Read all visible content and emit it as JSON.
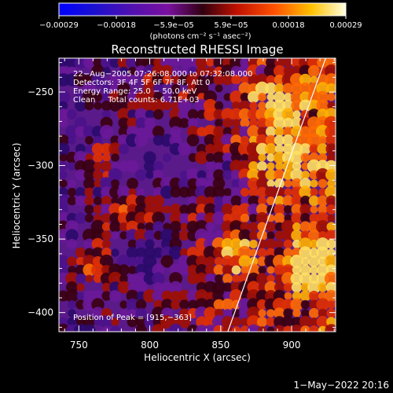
{
  "chart_data": {
    "type": "heatmap",
    "title": "Reconstructed RHESSI Image",
    "xlabel": "Heliocentric X (arcsec)",
    "ylabel": "Heliocentric Y (arcsec)",
    "xlim": [
      736,
      931
    ],
    "ylim": [
      -413,
      -227
    ],
    "x_ticks": [
      750,
      800,
      850,
      900
    ],
    "x_tick_labels": [
      "750",
      "800",
      "850",
      "900"
    ],
    "y_ticks": [
      -250,
      -300,
      -350,
      -400
    ],
    "y_tick_labels": [
      "−250",
      "−300",
      "−350",
      "−400"
    ],
    "colorbar": {
      "range": [
        -0.00029,
        0.00029
      ],
      "tick_labels": [
        "−0.00029",
        "−0.00018",
        "−5.9e−05",
        "5.9e−05",
        "0.00018",
        "0.00029"
      ],
      "unit": "(photons cm⁻² s⁻¹ asec⁻²)"
    },
    "annotations": [
      "22−Aug−2005 07:26:08.000 to 07:32:08.000",
      "Detectors: 3F 4F 5F 6F 7F 8F, Att 0",
      "Energy Range: 25.0 − 50.0 keV",
      "Clean     Total counts: 6.71E+03"
    ],
    "peak_label": "Position of Peak = [915,−363]",
    "peak": [
      915,
      -363
    ],
    "limb_line": [
      [
        855,
        -413
      ],
      [
        924,
        -227
      ]
    ],
    "timestamp": "1−May−2022 20:16"
  }
}
